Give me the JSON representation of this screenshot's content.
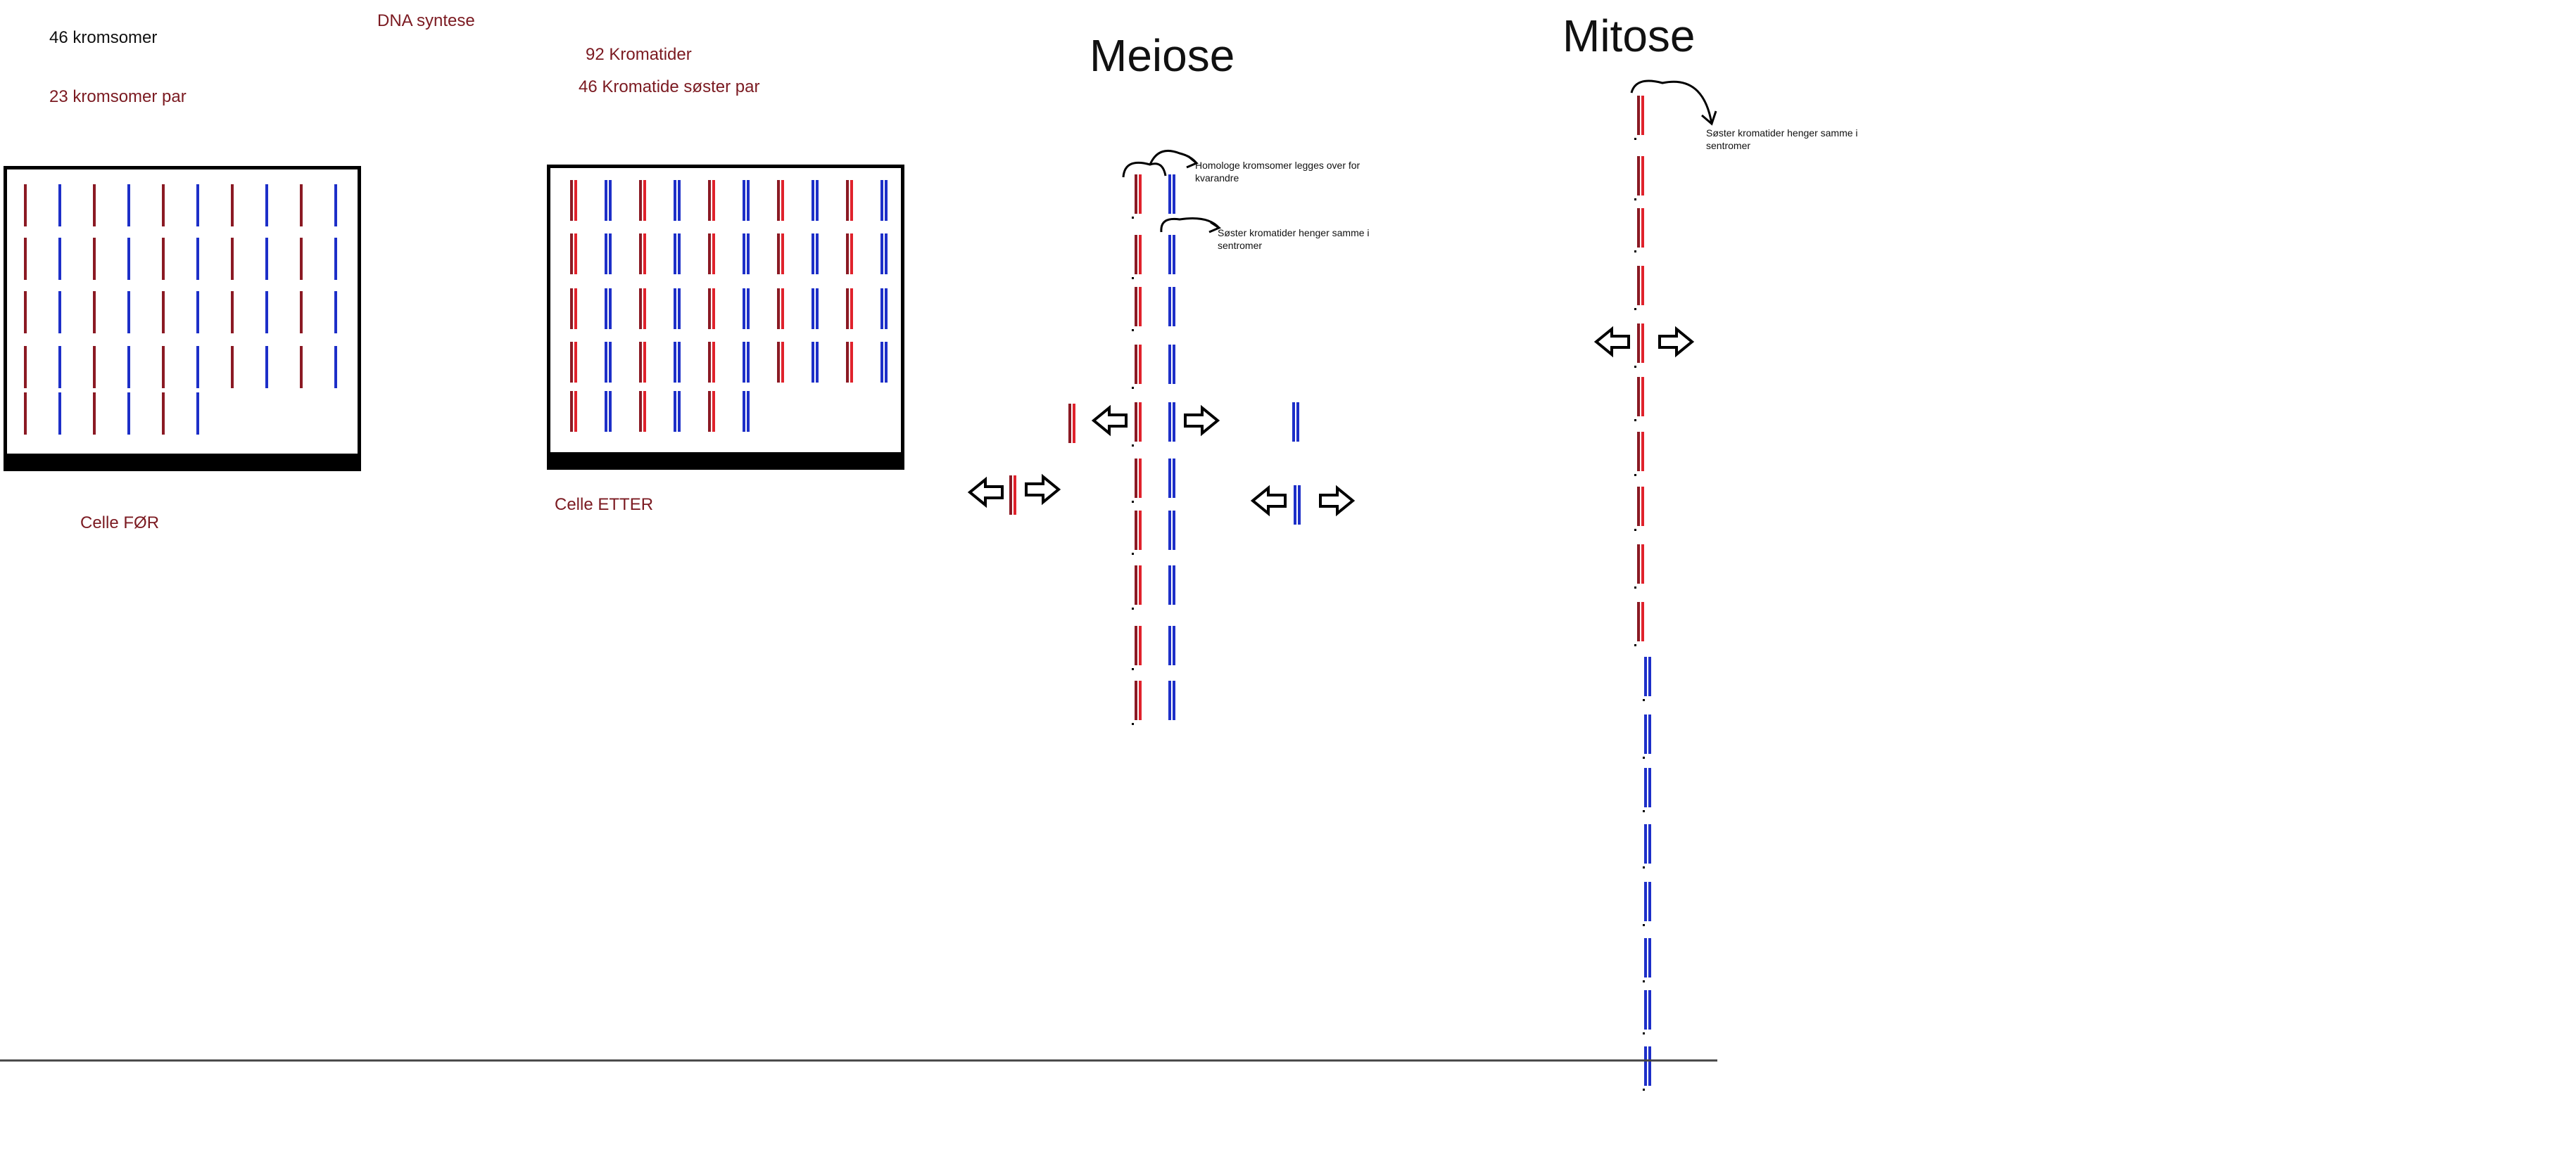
{
  "labels": {
    "kromosomer_46": "46 kromsomer",
    "kromosomer_par_23": "23 kromsomer par",
    "dna_syntese": "DNA syntese",
    "kromatider_92": "92 Kromatider",
    "kromatide_par_46": "46 Kromatide søster par",
    "celle_for": "Celle FØR",
    "celle_etter": "Celle ETTER",
    "meiose": "Meiose",
    "mitose": "Mitose",
    "note_homologe": "Homologe kromsomer legges over for kvarandre",
    "note_soster_meiose": "Søster kromatider henger samme i sentromer",
    "note_soster_mitose": "Søster kromatider henger samme i sentromer"
  },
  "colors": {
    "maternal_before": "#8b1a24",
    "maternal_after": "#e0222c",
    "paternal": "#1d2fc8",
    "text_dark_red": "#7b1a21",
    "outline": "#000000"
  },
  "cells": {
    "before": {
      "rows": [
        10,
        10,
        10,
        10,
        6
      ],
      "chromatids_per_chromosome": 1
    },
    "after": {
      "rows": [
        10,
        10,
        10,
        10,
        6
      ],
      "chromatids_per_chromosome": 2
    }
  },
  "meiose": {
    "paired_chromosome_segments": 11
  },
  "mitose": {
    "red_segments": 11,
    "blue_segments": 8
  },
  "arrows": [
    "arrow-left",
    "arrow-right"
  ]
}
